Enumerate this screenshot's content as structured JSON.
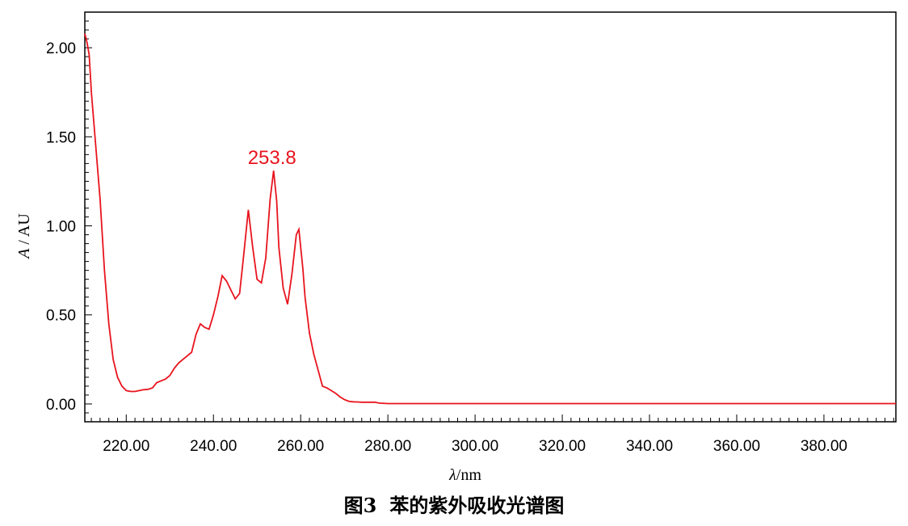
{
  "chart_data": {
    "type": "line",
    "xlabel_symbol": "λ",
    "xlabel_unit": "/nm",
    "ylabel_symbol": "A",
    "ylabel_unit": " / AU",
    "xlim": [
      210.5,
      396.5
    ],
    "ylim": [
      -0.1,
      2.2
    ],
    "x_ticks": [
      220,
      240,
      260,
      280,
      300,
      320,
      340,
      360,
      380
    ],
    "x_tick_labels": [
      "220.00",
      "240.00",
      "260.00",
      "280.00",
      "300.00",
      "320.00",
      "340.00",
      "360.00",
      "380.00"
    ],
    "y_ticks": [
      0,
      0.5,
      1.0,
      1.5,
      2.0
    ],
    "y_tick_labels": [
      "0.00",
      "0.50",
      "1.00",
      "1.50",
      "2.00"
    ],
    "line_color": "#e8141e",
    "grid": false,
    "series": [
      {
        "x": [
          210.5,
          211,
          211.5,
          212,
          213,
          214,
          215,
          216,
          217,
          218,
          219,
          220,
          221,
          222,
          223,
          224,
          225,
          226,
          227,
          228,
          229,
          230,
          231,
          232,
          233,
          234,
          235,
          236,
          237,
          238,
          239,
          240,
          241,
          242,
          243,
          244,
          245,
          246,
          247,
          248,
          249,
          250,
          251,
          252,
          253,
          253.8,
          254.5,
          255,
          256,
          257,
          258,
          259,
          259.6,
          260.5,
          261,
          262,
          263,
          264,
          265,
          266,
          267,
          268,
          269,
          270,
          271,
          272,
          273,
          274,
          275,
          276,
          277,
          278,
          280,
          290,
          300,
          320,
          340,
          360,
          380,
          396.5
        ],
        "y": [
          2.08,
          2.03,
          1.96,
          1.75,
          1.45,
          1.15,
          0.75,
          0.45,
          0.25,
          0.15,
          0.1,
          0.075,
          0.07,
          0.07,
          0.075,
          0.08,
          0.082,
          0.09,
          0.12,
          0.13,
          0.14,
          0.16,
          0.2,
          0.23,
          0.25,
          0.27,
          0.29,
          0.39,
          0.45,
          0.43,
          0.42,
          0.5,
          0.6,
          0.72,
          0.69,
          0.64,
          0.59,
          0.62,
          0.85,
          1.09,
          0.88,
          0.7,
          0.68,
          0.82,
          1.15,
          1.31,
          1.14,
          0.88,
          0.65,
          0.56,
          0.73,
          0.95,
          0.98,
          0.76,
          0.6,
          0.4,
          0.28,
          0.19,
          0.1,
          0.09,
          0.075,
          0.06,
          0.04,
          0.025,
          0.015,
          0.012,
          0.011,
          0.01,
          0.01,
          0.01,
          0.01,
          0.005,
          0.002,
          0.002,
          0.002,
          0.002,
          0.002,
          0.002,
          0.002,
          0.002
        ]
      }
    ],
    "annotations": [
      {
        "x": 253.8,
        "y": 1.31,
        "text": "253.8"
      }
    ]
  },
  "caption": {
    "figure_number": "图3",
    "text": "苯的紫外吸收光谱图"
  }
}
